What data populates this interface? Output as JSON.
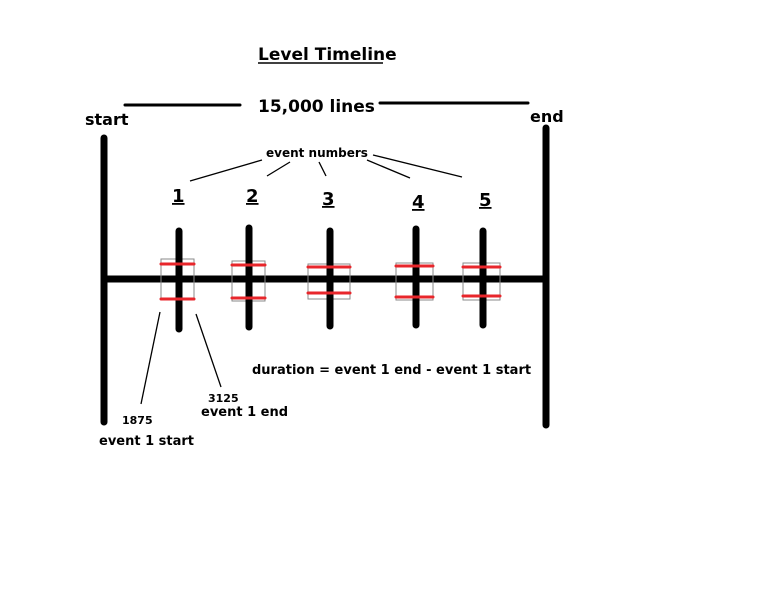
{
  "title": "Level Timeline",
  "total_label": "15,000 lines",
  "start_label": "start",
  "end_label": "end",
  "event_numbers_label": "event numbers",
  "events": [
    "1",
    "2",
    "3",
    "4",
    "5"
  ],
  "event1_start_value": "1875",
  "event1_end_value": "3125",
  "event1_start_label": "event 1 start",
  "event1_end_label": "event 1 end",
  "duration_formula": "duration = event 1 end - event 1 start",
  "colors": {
    "marker": "#e8262b",
    "line": "#000000",
    "box": "#8a8a8a"
  }
}
